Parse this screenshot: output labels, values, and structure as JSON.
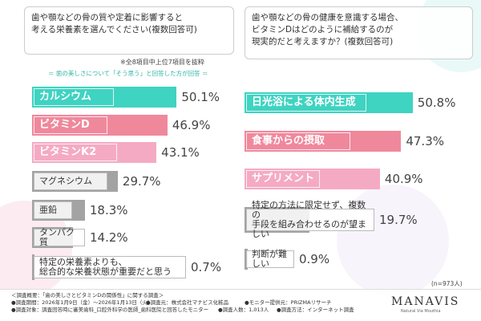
{
  "chart_data": [
    {
      "type": "bar",
      "orientation": "horizontal",
      "title": "歯や顎などの骨の質や定着に影響すると\n考える栄養素を選んでください(複数回答可)",
      "notes": [
        "※全8項目中上位7項目を抜粋",
        "＝ 歯の美しさについて「そう思う」と回答した方が回答 ＝"
      ],
      "categories": [
        "カルシウム",
        "ビタミンD",
        "ビタミンK2",
        "マグネシウム",
        "亜鉛",
        "タンパク質",
        "特定の栄養素よりも、\n総合的な栄養状態が重要だと思う"
      ],
      "values": [
        50.1,
        46.9,
        43.1,
        29.7,
        18.3,
        14.2,
        0.7
      ],
      "value_labels": [
        "50.1%",
        "46.9%",
        "43.1%",
        "29.7%",
        "18.3%",
        "14.2%",
        "0.7%"
      ],
      "colors": [
        "#3fd3c1",
        "#f0889c",
        "#f5aac4",
        "#a3a3a3",
        "#a3a3a3",
        "#a3a3a3",
        "#a3a3a3"
      ]
    },
    {
      "type": "bar",
      "orientation": "horizontal",
      "title": "歯や顎などの骨の健康を意識する場合、\nビタミンDはどのように補給するのが\n現実的だと考えますか？(複数回答可)",
      "note": "(n=973人)",
      "categories": [
        "日光浴による体内生成",
        "食事からの摂取",
        "サプリメント",
        "特定の方法に限定せず、複数の\n手段を組み合わせるのが望ましい",
        "判断が難しい"
      ],
      "values": [
        50.8,
        47.3,
        40.9,
        19.7,
        0.9
      ],
      "value_labels": [
        "50.8%",
        "47.3%",
        "40.9%",
        "19.7%",
        "0.9%"
      ],
      "colors": [
        "#3fd3c1",
        "#f0889c",
        "#f5aac4",
        "#a3a3a3",
        "#a3a3a3"
      ]
    }
  ],
  "footer": {
    "title": "＜調査概要：「歯の美しさとビタミンDの関係性」に関する調査＞",
    "lines": [
      "●調査期間：2026年1月9日（金）〜2026年1月13日（火）",
      "●調査元：株式会社マナビス化粧品",
      "●モニター提供元：PRIZMAリサーチ",
      "●調査対象：調査回答時に審美歯科_口腔外科学の医師_歯科医院と回答したモニター",
      "●調査人数：1,013人",
      "●調査方法：インターネット調査"
    ]
  },
  "logo": {
    "name": "MANAVIS",
    "tagline": "Natural Via Mouthia"
  }
}
